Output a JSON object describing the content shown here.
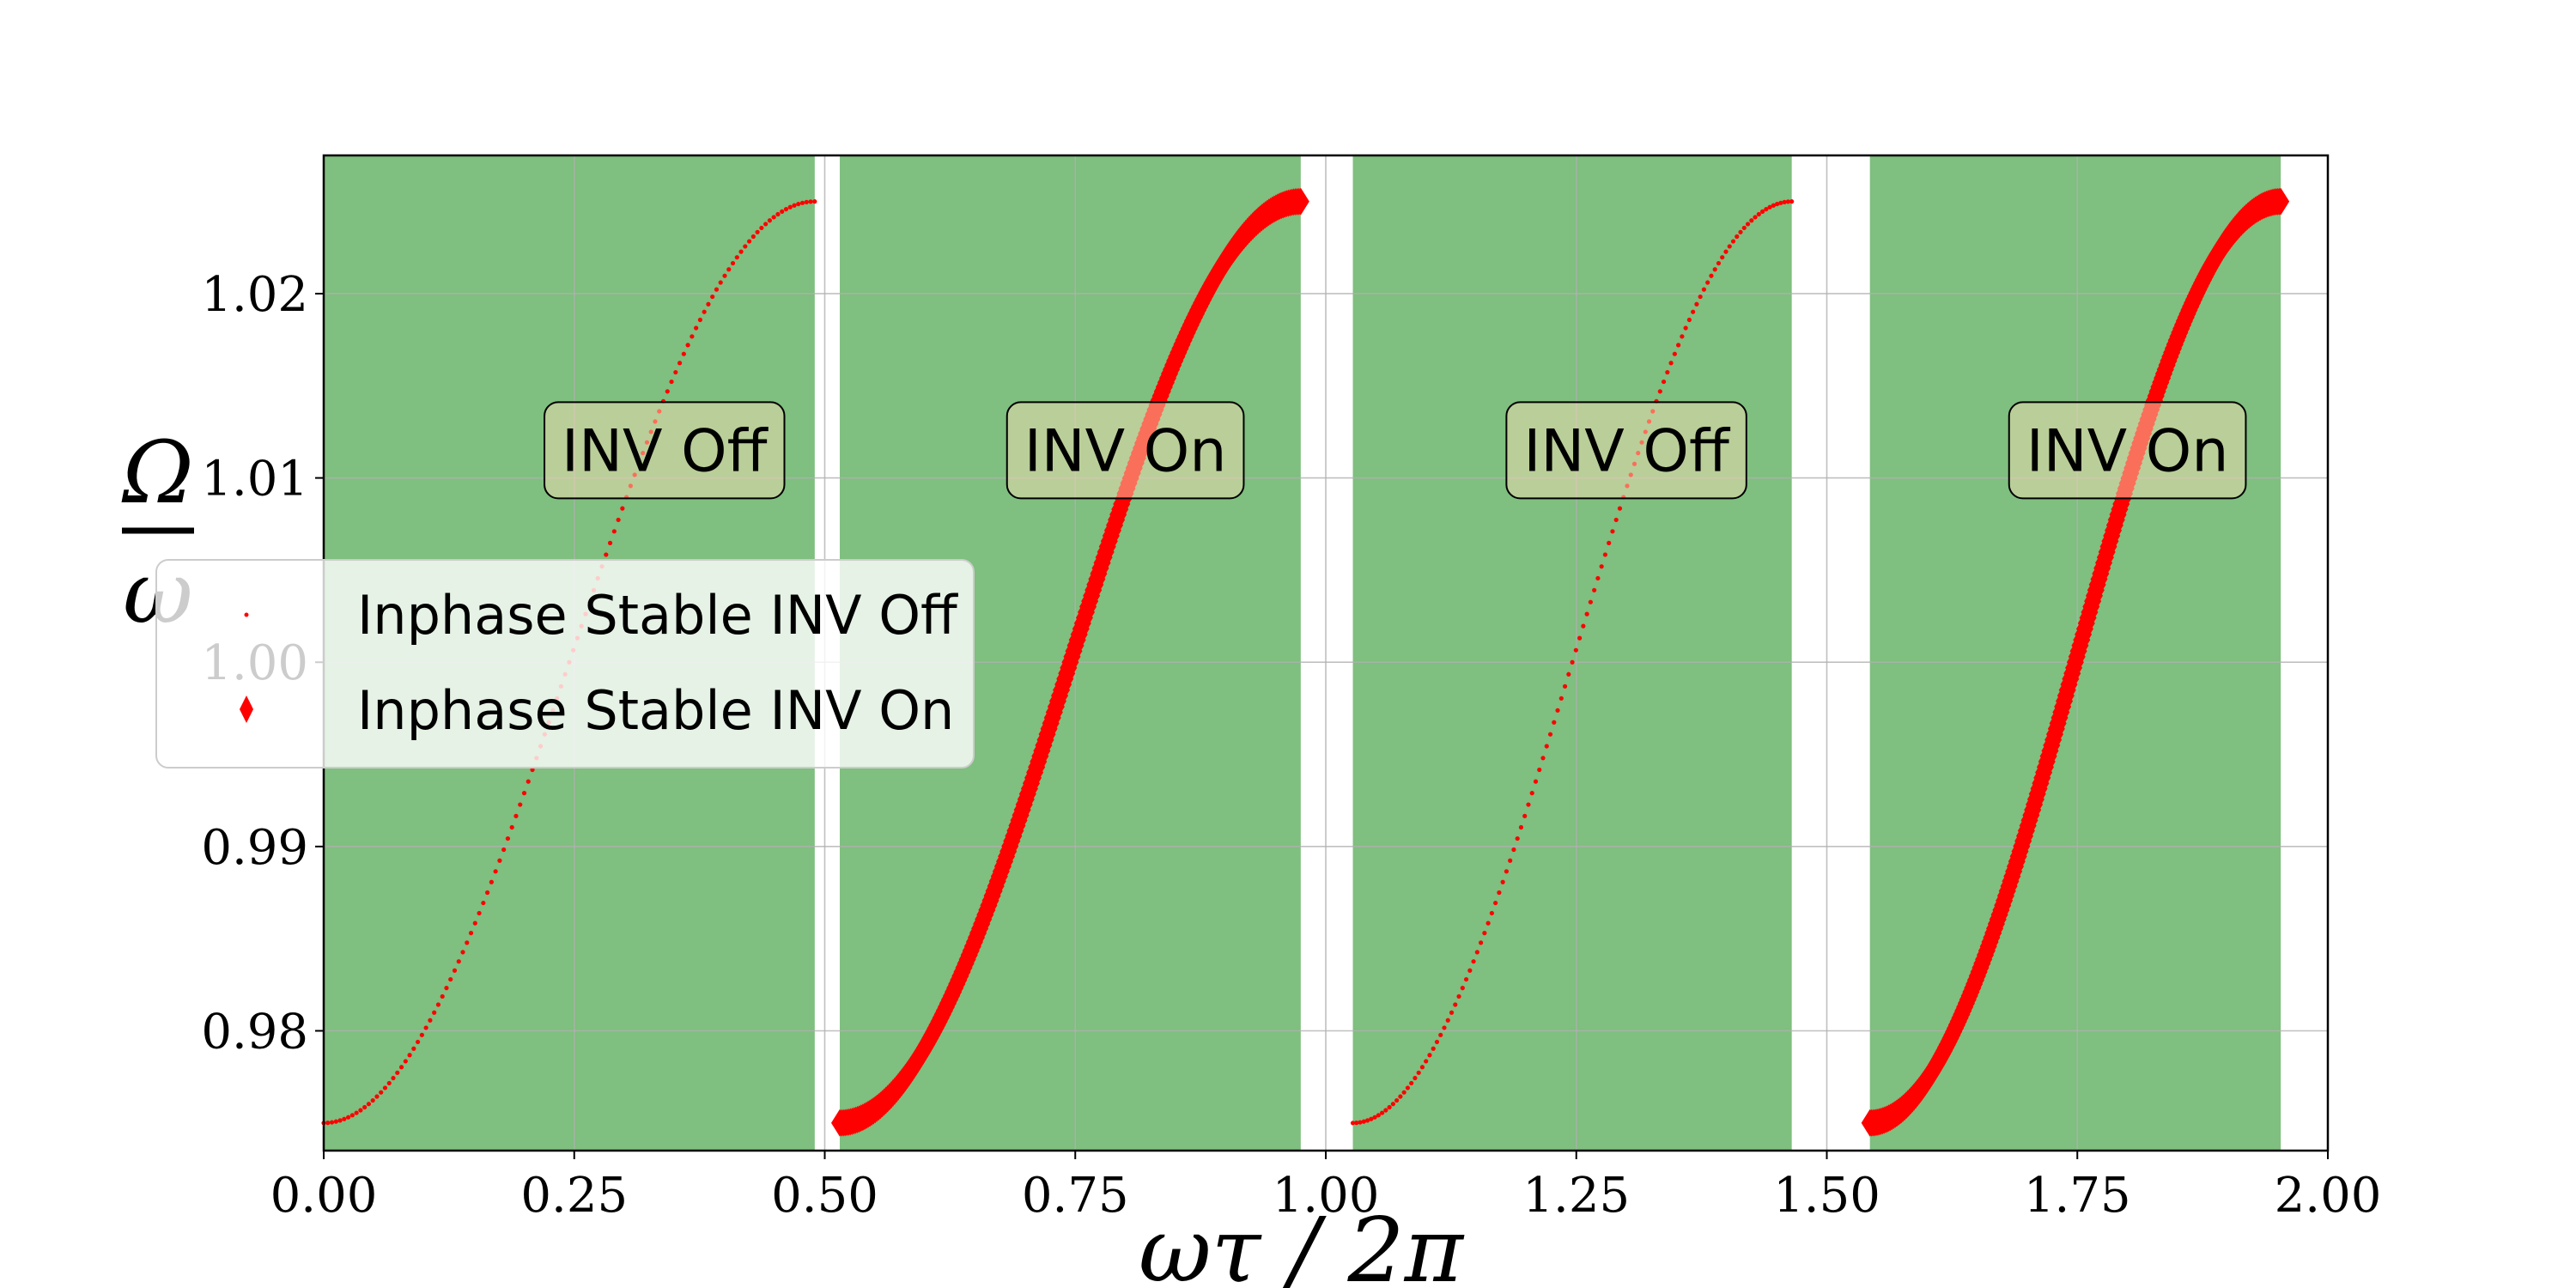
{
  "chart_data": {
    "type": "scatter",
    "xlabel": "ωτ / 2π",
    "ylabel_num": "Ω",
    "ylabel_den": "ω",
    "xlim": [
      0,
      2
    ],
    "ylim": [
      0.9735,
      1.0275
    ],
    "grid": true,
    "legend_placement": "center-left",
    "xticks": [
      {
        "value": 0.0,
        "label": "0.00"
      },
      {
        "value": 0.25,
        "label": "0.25"
      },
      {
        "value": 0.5,
        "label": "0.50"
      },
      {
        "value": 0.75,
        "label": "0.75"
      },
      {
        "value": 1.0,
        "label": "1.00"
      },
      {
        "value": 1.25,
        "label": "1.25"
      },
      {
        "value": 1.5,
        "label": "1.50"
      },
      {
        "value": 1.75,
        "label": "1.75"
      },
      {
        "value": 2.0,
        "label": "2.00"
      }
    ],
    "yticks": [
      {
        "value": 0.98,
        "label": "0.98"
      },
      {
        "value": 0.99,
        "label": "0.99"
      },
      {
        "value": 1.0,
        "label": "1.00"
      },
      {
        "value": 1.01,
        "label": "1.01"
      },
      {
        "value": 1.02,
        "label": "1.02"
      }
    ],
    "stable_regions": [
      {
        "x0": 0.0,
        "x1": 0.49,
        "color": "#7fbf7f"
      },
      {
        "x0": 0.515,
        "x1": 0.975,
        "color": "#7fbf7f"
      },
      {
        "x0": 1.027,
        "x1": 1.465,
        "color": "#7fbf7f"
      },
      {
        "x0": 1.543,
        "x1": 1.953,
        "color": "#7fbf7f"
      }
    ],
    "region_labels": [
      {
        "text": "INV Off",
        "x": 0.34,
        "y": 1.0115
      },
      {
        "text": "INV On",
        "x": 0.8,
        "y": 1.0115
      },
      {
        "text": "INV Off",
        "x": 1.3,
        "y": 1.0115
      },
      {
        "text": "INV On",
        "x": 1.8,
        "y": 1.0115
      }
    ],
    "series": [
      {
        "name": "Inphase Stable INV Off",
        "color": "#ff0000",
        "marker": "dot",
        "segments": [
          {
            "x_start": 0.0,
            "x_end": 0.49,
            "y_min": 0.975,
            "y_max": 1.025
          },
          {
            "x_start": 1.027,
            "x_end": 1.465,
            "y_min": 0.975,
            "y_max": 1.025
          }
        ]
      },
      {
        "name": "Inphase Stable INV On",
        "color": "#ff0000",
        "marker": "diamond",
        "segments": [
          {
            "x_start": 0.515,
            "x_end": 0.975,
            "y_min": 0.975,
            "y_max": 1.025
          },
          {
            "x_start": 1.543,
            "x_end": 1.953,
            "y_min": 0.975,
            "y_max": 1.025
          }
        ]
      }
    ]
  }
}
